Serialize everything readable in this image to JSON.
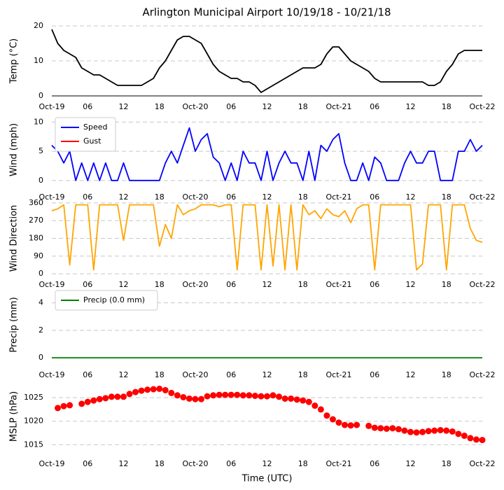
{
  "chart_data": [
    {
      "type": "line",
      "title": "Arlington Municipal Airport 10/19/18 - 10/21/18",
      "ylabel": "Temp (°C)",
      "color": "#000000",
      "x": [
        0,
        1,
        2,
        3,
        4,
        5,
        6,
        7,
        8,
        9,
        10,
        11,
        12,
        13,
        14,
        15,
        16,
        17,
        18,
        19,
        20,
        21,
        22,
        23,
        24,
        25,
        26,
        27,
        28,
        29,
        30,
        31,
        32,
        33,
        34,
        35,
        36,
        37,
        38,
        39,
        40,
        41,
        42,
        43,
        44,
        45,
        46,
        47,
        48,
        49,
        50,
        51,
        52,
        53,
        54,
        55,
        56,
        57,
        58,
        59,
        60,
        61,
        62,
        63,
        64,
        65,
        66,
        67,
        68,
        69,
        70,
        71,
        72
      ],
      "values": [
        19,
        15,
        13,
        12,
        11,
        8,
        7,
        6,
        6,
        5,
        4,
        3,
        3,
        3,
        3,
        3,
        4,
        5,
        8,
        10,
        13,
        16,
        17,
        17,
        16,
        15,
        12,
        9,
        7,
        6,
        5,
        5,
        4,
        4,
        3,
        1,
        2,
        3,
        4,
        5,
        6,
        7,
        8,
        8,
        8,
        9,
        12,
        14,
        14,
        12,
        10,
        9,
        8,
        7,
        5,
        4,
        4,
        4,
        4,
        4,
        4,
        4,
        4,
        3,
        3,
        4,
        7,
        9,
        12,
        13,
        13,
        13,
        13
      ],
      "xlim": [
        0,
        72
      ],
      "xticks": [
        {
          "value": 0,
          "label": "Oct-19"
        },
        {
          "value": 6,
          "label": "06"
        },
        12,
        18,
        {
          "value": 24,
          "label": "Oct-20"
        },
        {
          "value": 30,
          "label": "06"
        },
        {
          "value": 36,
          "label": "12"
        },
        {
          "value": 42,
          "label": "18"
        },
        {
          "value": 48,
          "label": "Oct-21"
        },
        {
          "value": 54,
          "label": "06"
        },
        {
          "value": 60,
          "label": "12"
        },
        {
          "value": 66,
          "label": "18"
        },
        {
          "value": 72,
          "label": "Oct-22"
        }
      ],
      "ylim": [
        0,
        20
      ],
      "yticks": [
        0,
        10,
        20
      ],
      "grid": true
    },
    {
      "type": "line",
      "ylabel": "Wind (mph)",
      "legend": "upper left",
      "x": [
        0,
        1,
        2,
        3,
        4,
        5,
        6,
        7,
        8,
        9,
        10,
        11,
        12,
        13,
        14,
        15,
        16,
        17,
        18,
        19,
        20,
        21,
        22,
        23,
        24,
        25,
        26,
        27,
        28,
        29,
        30,
        31,
        32,
        33,
        34,
        35,
        36,
        37,
        38,
        39,
        40,
        41,
        42,
        43,
        44,
        45,
        46,
        47,
        48,
        49,
        50,
        51,
        52,
        53,
        54,
        55,
        56,
        57,
        58,
        59,
        60,
        61,
        62,
        63,
        64,
        65,
        66,
        67,
        68,
        69,
        70,
        71,
        72
      ],
      "series": [
        {
          "name": "Speed",
          "color": "#0000ff",
          "values": [
            6,
            5,
            3,
            5,
            0,
            3,
            0,
            3,
            0,
            3,
            0,
            0,
            3,
            0,
            0,
            0,
            0,
            0,
            0,
            3,
            5,
            3,
            6,
            9,
            5,
            7,
            8,
            4,
            3,
            0,
            3,
            0,
            5,
            3,
            3,
            0,
            5,
            0,
            3,
            5,
            3,
            3,
            0,
            5,
            0,
            6,
            5,
            7,
            8,
            3,
            0,
            0,
            3,
            0,
            4,
            3,
            0,
            0,
            0,
            3,
            5,
            3,
            3,
            5,
            5,
            0,
            0,
            0,
            5,
            5,
            7,
            5,
            6
          ]
        },
        {
          "name": "Gust",
          "color": "#ff0000",
          "values": [
            null,
            null,
            null,
            null,
            null,
            null,
            null,
            null,
            null,
            null,
            null,
            null,
            null,
            null,
            null,
            null,
            null,
            null,
            null,
            null,
            null,
            null,
            null,
            null,
            null,
            null,
            null,
            null,
            null,
            null,
            null,
            null,
            null,
            null,
            null,
            null,
            null,
            null,
            null,
            null,
            null,
            null,
            null,
            null,
            null,
            null,
            null,
            null,
            null,
            null,
            null,
            null,
            null,
            null,
            null,
            null,
            null,
            null,
            null,
            null,
            null,
            null,
            null,
            null,
            null,
            null,
            null,
            null,
            null,
            null,
            null,
            null,
            null
          ]
        }
      ],
      "xlim": [
        0,
        72
      ],
      "xticks": [
        {
          "value": 0,
          "label": "Oct-19"
        },
        {
          "value": 6,
          "label": "06"
        },
        12,
        18,
        {
          "value": 24,
          "label": "Oct-20"
        },
        {
          "value": 30,
          "label": "06"
        },
        {
          "value": 36,
          "label": "12"
        },
        {
          "value": 42,
          "label": "18"
        },
        {
          "value": 48,
          "label": "Oct-21"
        },
        {
          "value": 54,
          "label": "06"
        },
        {
          "value": 60,
          "label": "12"
        },
        {
          "value": 66,
          "label": "18"
        },
        {
          "value": 72,
          "label": "Oct-22"
        }
      ],
      "ylim": [
        -0.5,
        11
      ],
      "yticks": [
        0,
        5,
        10
      ],
      "grid": true
    },
    {
      "type": "line",
      "ylabel": "Wind Direction",
      "color": "#ffa500",
      "x": [
        0,
        1,
        2,
        3,
        4,
        5,
        6,
        7,
        8,
        9,
        10,
        11,
        12,
        13,
        14,
        15,
        16,
        17,
        18,
        19,
        20,
        21,
        22,
        23,
        24,
        25,
        26,
        27,
        28,
        29,
        30,
        31,
        32,
        33,
        34,
        35,
        36,
        37,
        38,
        39,
        40,
        41,
        42,
        43,
        44,
        45,
        46,
        47,
        48,
        49,
        50,
        51,
        52,
        53,
        54,
        55,
        56,
        57,
        58,
        59,
        60,
        61,
        62,
        63,
        64,
        65,
        66,
        67,
        68,
        69,
        70,
        71,
        72
      ],
      "values": [
        320,
        330,
        350,
        45,
        350,
        350,
        350,
        20,
        350,
        350,
        350,
        350,
        170,
        350,
        350,
        350,
        350,
        350,
        140,
        250,
        180,
        350,
        300,
        320,
        330,
        350,
        350,
        350,
        340,
        350,
        350,
        20,
        350,
        350,
        350,
        20,
        350,
        40,
        350,
        20,
        350,
        20,
        350,
        300,
        320,
        280,
        330,
        300,
        290,
        320,
        260,
        330,
        350,
        350,
        20,
        350,
        350,
        350,
        350,
        350,
        350,
        20,
        50,
        350,
        350,
        350,
        20,
        350,
        350,
        350,
        230,
        170,
        160
      ],
      "xlim": [
        0,
        72
      ],
      "xticks": [
        {
          "value": 0,
          "label": "Oct-19"
        },
        {
          "value": 6,
          "label": "06"
        },
        12,
        18,
        {
          "value": 24,
          "label": "Oct-20"
        },
        {
          "value": 30,
          "label": "06"
        },
        {
          "value": 36,
          "label": "12"
        },
        {
          "value": 42,
          "label": "18"
        },
        {
          "value": 48,
          "label": "Oct-21"
        },
        {
          "value": 54,
          "label": "06"
        },
        {
          "value": 60,
          "label": "12"
        },
        {
          "value": 66,
          "label": "18"
        },
        {
          "value": 72,
          "label": "Oct-22"
        }
      ],
      "ylim": [
        -10,
        370
      ],
      "yticks": [
        0,
        90,
        180,
        270,
        360
      ],
      "grid": true
    },
    {
      "type": "line",
      "ylabel": "Precip (mm)",
      "legend": "upper left",
      "x": [
        0,
        1,
        2,
        3,
        4,
        5,
        6,
        7,
        8,
        9,
        10,
        11,
        12,
        13,
        14,
        15,
        16,
        17,
        18,
        19,
        20,
        21,
        22,
        23,
        24,
        25,
        26,
        27,
        28,
        29,
        30,
        31,
        32,
        33,
        34,
        35,
        36,
        37,
        38,
        39,
        40,
        41,
        42,
        43,
        44,
        45,
        46,
        47,
        48,
        49,
        50,
        51,
        52,
        53,
        54,
        55,
        56,
        57,
        58,
        59,
        60,
        61,
        62,
        63,
        64,
        65,
        66,
        67,
        68,
        69,
        70,
        71,
        72
      ],
      "series": [
        {
          "name": "Precip (0.0 mm)",
          "color": "#008000",
          "values": [
            0,
            0,
            0,
            0,
            0,
            0,
            0,
            0,
            0,
            0,
            0,
            0,
            0,
            0,
            0,
            0,
            0,
            0,
            0,
            0,
            0,
            0,
            0,
            0,
            0,
            0,
            0,
            0,
            0,
            0,
            0,
            0,
            0,
            0,
            0,
            0,
            0,
            0,
            0,
            0,
            0,
            0,
            0,
            0,
            0,
            0,
            0,
            0,
            0,
            0,
            0,
            0,
            0,
            0,
            0,
            0,
            0,
            0,
            0,
            0,
            0,
            0,
            0,
            0,
            0,
            0,
            0,
            0,
            0,
            0,
            0,
            0,
            0
          ]
        }
      ],
      "xlim": [
        0,
        72
      ],
      "xticks": [
        {
          "value": 0,
          "label": "Oct-19"
        },
        {
          "value": 6,
          "label": "06"
        },
        12,
        18,
        {
          "value": 24,
          "label": "Oct-20"
        },
        {
          "value": 30,
          "label": "06"
        },
        {
          "value": 36,
          "label": "12"
        },
        {
          "value": 42,
          "label": "18"
        },
        {
          "value": 48,
          "label": "Oct-21"
        },
        {
          "value": 54,
          "label": "06"
        },
        {
          "value": 60,
          "label": "12"
        },
        {
          "value": 66,
          "label": "18"
        },
        {
          "value": 72,
          "label": "Oct-22"
        }
      ],
      "ylim": [
        -0.2,
        5
      ],
      "yticks": [
        0,
        2,
        4
      ],
      "grid": true
    },
    {
      "type": "scatter",
      "ylabel": "MSLP (hPa)",
      "xlabel": "Time (UTC)",
      "color": "#ff0000",
      "x": [
        1,
        2,
        3,
        5,
        6,
        7,
        8,
        9,
        10,
        11,
        12,
        13,
        14,
        15,
        16,
        17,
        18,
        19,
        20,
        21,
        22,
        23,
        24,
        25,
        26,
        27,
        28,
        29,
        30,
        31,
        32,
        33,
        34,
        35,
        36,
        37,
        38,
        39,
        40,
        41,
        42,
        43,
        44,
        45,
        46,
        47,
        48,
        49,
        50,
        51,
        53,
        54,
        55,
        56,
        57,
        58,
        59,
        60,
        61,
        62,
        63,
        64,
        65,
        66,
        67,
        68,
        69,
        70,
        71,
        72
      ],
      "values": [
        1022.8,
        1023.2,
        1023.4,
        1023.7,
        1024.1,
        1024.4,
        1024.7,
        1024.9,
        1025.2,
        1025.2,
        1025.2,
        1025.8,
        1026.2,
        1026.5,
        1026.7,
        1026.8,
        1026.9,
        1026.6,
        1026.0,
        1025.5,
        1025.1,
        1024.8,
        1024.7,
        1024.7,
        1025.3,
        1025.5,
        1025.6,
        1025.6,
        1025.6,
        1025.6,
        1025.5,
        1025.5,
        1025.4,
        1025.3,
        1025.3,
        1025.5,
        1025.2,
        1024.8,
        1024.8,
        1024.6,
        1024.4,
        1024.1,
        1023.3,
        1022.5,
        1021.2,
        1020.4,
        1019.7,
        1019.2,
        1019.1,
        1019.2,
        1019.0,
        1018.6,
        1018.5,
        1018.4,
        1018.5,
        1018.3,
        1018.0,
        1017.7,
        1017.6,
        1017.7,
        1017.9,
        1018.0,
        1018.1,
        1018.0,
        1017.8,
        1017.3,
        1016.9,
        1016.4,
        1016.1,
        1016.0
      ],
      "xlim": [
        0,
        72
      ],
      "xticks": [
        {
          "value": 0,
          "label": "Oct-19"
        },
        {
          "value": 6,
          "label": "06"
        },
        12,
        18,
        {
          "value": 24,
          "label": "Oct-20"
        },
        {
          "value": 30,
          "label": "06"
        },
        {
          "value": 36,
          "label": "12"
        },
        {
          "value": 42,
          "label": "18"
        },
        {
          "value": 48,
          "label": "Oct-21"
        },
        {
          "value": 54,
          "label": "06"
        },
        {
          "value": 60,
          "label": "12"
        },
        {
          "value": 66,
          "label": "18"
        },
        {
          "value": 72,
          "label": "Oct-22"
        }
      ],
      "ylim": [
        1014,
        1028
      ],
      "yticks": [
        1015,
        1020,
        1025
      ],
      "grid": true
    }
  ]
}
